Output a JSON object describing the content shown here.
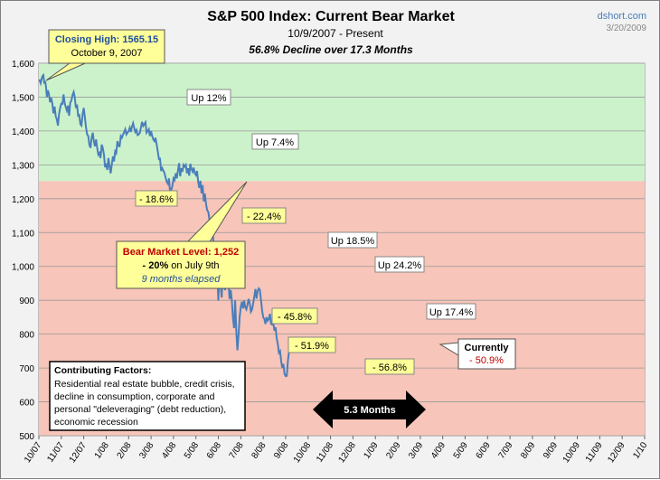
{
  "chart_data": {
    "type": "line",
    "title": "S&P 500 Index: Current Bear Market",
    "subtitle": "10/9/2007 - Present",
    "subtitle2": "56.8% Decline over 17.3 Months",
    "source": "dshort.com",
    "date": "3/20/2009",
    "ylim": [
      500,
      1600
    ],
    "yticks": [
      500,
      600,
      700,
      800,
      900,
      "1,000",
      "1,100",
      "1,200",
      "1,300",
      "1,400",
      "1,500",
      "1,600"
    ],
    "x_categories": [
      "10/07",
      "11/07",
      "12/07",
      "1/08",
      "2/08",
      "3/08",
      "4/08",
      "5/08",
      "6/08",
      "7/08",
      "8/08",
      "9/08",
      "10/08",
      "11/08",
      "12/08",
      "1/09",
      "2/09",
      "3/09",
      "4/09",
      "5/09",
      "6/09",
      "7/09",
      "8/09",
      "9/09",
      "10/09",
      "11/09",
      "12/09",
      "1/10"
    ],
    "bull_zone_min": 1252,
    "series": [
      {
        "values": [
          [
            0,
            1549
          ],
          [
            0.03,
            1550
          ],
          [
            0.08,
            1541
          ],
          [
            0.12,
            1554
          ],
          [
            0.16,
            1562
          ],
          [
            0.2,
            1565
          ],
          [
            0.24,
            1540
          ],
          [
            0.28,
            1548
          ],
          [
            0.32,
            1530
          ],
          [
            0.36,
            1500
          ],
          [
            0.4,
            1520
          ],
          [
            0.44,
            1512
          ],
          [
            0.5,
            1485
          ],
          [
            0.55,
            1498
          ],
          [
            0.6,
            1481
          ],
          [
            0.65,
            1452
          ],
          [
            0.7,
            1472
          ],
          [
            0.75,
            1444
          ],
          [
            0.8,
            1434
          ],
          [
            0.85,
            1416
          ],
          [
            0.9,
            1450
          ],
          [
            0.95,
            1469
          ],
          [
            1.0,
            1481
          ],
          [
            1.05,
            1480
          ],
          [
            1.1,
            1508
          ],
          [
            1.15,
            1483
          ],
          [
            1.2,
            1470
          ],
          [
            1.25,
            1460
          ],
          [
            1.3,
            1475
          ],
          [
            1.35,
            1445
          ],
          [
            1.4,
            1484
          ],
          [
            1.45,
            1490
          ],
          [
            1.5,
            1506
          ],
          [
            1.55,
            1515
          ],
          [
            1.6,
            1500
          ],
          [
            1.65,
            1468
          ],
          [
            1.7,
            1478
          ],
          [
            1.75,
            1445
          ],
          [
            1.8,
            1447
          ],
          [
            1.85,
            1420
          ],
          [
            1.9,
            1416
          ],
          [
            1.95,
            1450
          ],
          [
            2.0,
            1468
          ],
          [
            2.05,
            1441
          ],
          [
            2.1,
            1411
          ],
          [
            2.15,
            1390
          ],
          [
            2.2,
            1385
          ],
          [
            2.25,
            1360
          ],
          [
            2.3,
            1350
          ],
          [
            2.35,
            1380
          ],
          [
            2.4,
            1395
          ],
          [
            2.45,
            1370
          ],
          [
            2.5,
            1355
          ],
          [
            2.55,
            1375
          ],
          [
            2.6,
            1350
          ],
          [
            2.65,
            1330
          ],
          [
            2.7,
            1335
          ],
          [
            2.75,
            1320
          ],
          [
            2.8,
            1360
          ],
          [
            2.85,
            1350
          ],
          [
            2.9,
            1330
          ],
          [
            2.95,
            1293
          ],
          [
            3.0,
            1304
          ],
          [
            3.05,
            1285
          ],
          [
            3.1,
            1320
          ],
          [
            3.15,
            1295
          ],
          [
            3.2,
            1275
          ],
          [
            3.25,
            1300
          ],
          [
            3.3,
            1325
          ],
          [
            3.35,
            1310
          ],
          [
            3.4,
            1340
          ],
          [
            3.45,
            1335
          ],
          [
            3.5,
            1370
          ],
          [
            3.55,
            1356
          ],
          [
            3.6,
            1355
          ],
          [
            3.65,
            1385
          ],
          [
            3.7,
            1380
          ],
          [
            3.75,
            1390
          ],
          [
            3.8,
            1396
          ],
          [
            3.85,
            1405
          ],
          [
            3.9,
            1390
          ],
          [
            3.95,
            1395
          ],
          [
            4.0,
            1400
          ],
          [
            4.05,
            1410
          ],
          [
            4.1,
            1397
          ],
          [
            4.15,
            1413
          ],
          [
            4.2,
            1423
          ],
          [
            4.25,
            1408
          ],
          [
            4.3,
            1397
          ],
          [
            4.35,
            1403
          ],
          [
            4.4,
            1388
          ],
          [
            4.45,
            1390
          ],
          [
            4.5,
            1395
          ],
          [
            4.55,
            1410
          ],
          [
            4.6,
            1427
          ],
          [
            4.65,
            1415
          ],
          [
            4.7,
            1420
          ],
          [
            4.75,
            1426
          ],
          [
            4.8,
            1395
          ],
          [
            4.85,
            1400
          ],
          [
            4.9,
            1405
          ],
          [
            4.95,
            1385
          ],
          [
            5.0,
            1400
          ],
          [
            5.05,
            1385
          ],
          [
            5.1,
            1375
          ],
          [
            5.15,
            1370
          ],
          [
            5.2,
            1380
          ],
          [
            5.25,
            1360
          ],
          [
            5.3,
            1340
          ],
          [
            5.35,
            1317
          ],
          [
            5.4,
            1318
          ],
          [
            5.45,
            1282
          ],
          [
            5.5,
            1290
          ],
          [
            5.55,
            1283
          ],
          [
            5.6,
            1275
          ],
          [
            5.65,
            1262
          ],
          [
            5.7,
            1250
          ],
          [
            5.75,
            1244
          ],
          [
            5.8,
            1260
          ],
          [
            5.85,
            1215
          ],
          [
            5.9,
            1226
          ],
          [
            5.95,
            1237
          ],
          [
            6.0,
            1260
          ],
          [
            6.05,
            1255
          ],
          [
            6.1,
            1275
          ],
          [
            6.15,
            1260
          ],
          [
            6.2,
            1285
          ],
          [
            6.25,
            1305
          ],
          [
            6.3,
            1266
          ],
          [
            6.35,
            1290
          ],
          [
            6.4,
            1280
          ],
          [
            6.45,
            1300
          ],
          [
            6.5,
            1295
          ],
          [
            6.55,
            1300
          ],
          [
            6.6,
            1275
          ],
          [
            6.65,
            1290
          ],
          [
            6.7,
            1268
          ],
          [
            6.75,
            1303
          ],
          [
            6.8,
            1288
          ],
          [
            6.85,
            1280
          ],
          [
            6.9,
            1292
          ],
          [
            6.95,
            1275
          ],
          [
            7.0,
            1270
          ],
          [
            7.05,
            1282
          ],
          [
            7.1,
            1250
          ],
          [
            7.15,
            1232
          ],
          [
            7.2,
            1253
          ],
          [
            7.25,
            1216
          ],
          [
            7.3,
            1240
          ],
          [
            7.35,
            1192
          ],
          [
            7.4,
            1215
          ],
          [
            7.45,
            1185
          ],
          [
            7.5,
            1166
          ],
          [
            7.55,
            1161
          ],
          [
            7.6,
            1140
          ],
          [
            7.65,
            1106
          ],
          [
            7.7,
            1114
          ],
          [
            7.75,
            1100
          ],
          [
            7.8,
            1050
          ],
          [
            7.85,
            985
          ],
          [
            7.9,
            965
          ],
          [
            7.95,
            980
          ],
          [
            8.0,
            899
          ],
          [
            8.05,
            1003
          ],
          [
            8.1,
            945
          ],
          [
            8.15,
            908
          ],
          [
            8.2,
            985
          ],
          [
            8.25,
            940
          ],
          [
            8.3,
            930
          ],
          [
            8.35,
            968
          ],
          [
            8.4,
            1005
          ],
          [
            8.45,
            953
          ],
          [
            8.5,
            904
          ],
          [
            8.55,
            930
          ],
          [
            8.6,
            900
          ],
          [
            8.65,
            850
          ],
          [
            8.7,
            818
          ],
          [
            8.75,
            900
          ],
          [
            8.8,
            806
          ],
          [
            8.85,
            752
          ],
          [
            8.9,
            800
          ],
          [
            8.95,
            851
          ],
          [
            9.0,
            880
          ],
          [
            9.05,
            896
          ],
          [
            9.1,
            876
          ],
          [
            9.15,
            899
          ],
          [
            9.2,
            879
          ],
          [
            9.25,
            873
          ],
          [
            9.3,
            888
          ],
          [
            9.35,
            904
          ],
          [
            9.4,
            890
          ],
          [
            9.45,
            866
          ],
          [
            9.5,
            872
          ],
          [
            9.55,
            890
          ],
          [
            9.6,
            910
          ],
          [
            9.65,
            933
          ],
          [
            9.7,
            905
          ],
          [
            9.75,
            927
          ],
          [
            9.8,
            935
          ],
          [
            9.85,
            931
          ],
          [
            9.9,
            900
          ],
          [
            9.95,
            870
          ],
          [
            10.0,
            850
          ],
          [
            10.05,
            845
          ],
          [
            10.1,
            830
          ],
          [
            10.15,
            850
          ],
          [
            10.2,
            840
          ],
          [
            10.25,
            845
          ],
          [
            10.3,
            860
          ],
          [
            10.35,
            830
          ],
          [
            10.4,
            828
          ],
          [
            10.45,
            833
          ],
          [
            10.5,
            810
          ],
          [
            10.55,
            820
          ],
          [
            10.6,
            789
          ],
          [
            10.65,
            770
          ],
          [
            10.7,
            745
          ],
          [
            10.75,
            750
          ],
          [
            10.8,
            720
          ],
          [
            10.85,
            700
          ],
          [
            10.9,
            712
          ],
          [
            10.95,
            683
          ],
          [
            11.0,
            676
          ],
          [
            11.05,
            677
          ],
          [
            11.1,
            720
          ],
          [
            11.15,
            750
          ],
          [
            11.2,
            778
          ],
          [
            11.25,
            760
          ],
          [
            11.3,
            785
          ],
          [
            11.35,
            768
          ]
        ]
      }
    ]
  },
  "annotations": {
    "closing_high_label": "Closing High: 1565.15",
    "closing_high_date": "October 9, 2007",
    "up12": "Up 12%",
    "up74": "Up 7.4%",
    "up185": "Up 18.5%",
    "up242": "Up 24.2%",
    "up174": "Up 17.4%",
    "d186": "- 18.6%",
    "d224": "- 22.4%",
    "d458": "- 45.8%",
    "d519": "- 51.9%",
    "d568": "- 56.8%",
    "bear_level": "Bear Market Level: 1,252",
    "bear_pct": "- 20%",
    "bear_date": " on July 9th",
    "bear_elapsed": "9 months elapsed",
    "currently": "Currently",
    "current_pct": "- 50.9%",
    "factors_title": "Contributing Factors:",
    "factors_lines": [
      "Residential real estate bubble, credit crisis,",
      "decline in consumption, corporate and",
      "personal \"deleveraging\" (debt reduction),",
      "economic recession"
    ],
    "months": "5.3 Months"
  },
  "colors": {
    "line": "#4a7ebb",
    "green_zone": "#ccf2cc",
    "red_zone": "#f7c5b9",
    "callout_fill": "#ffff99",
    "callout_white": "#ffffff"
  }
}
